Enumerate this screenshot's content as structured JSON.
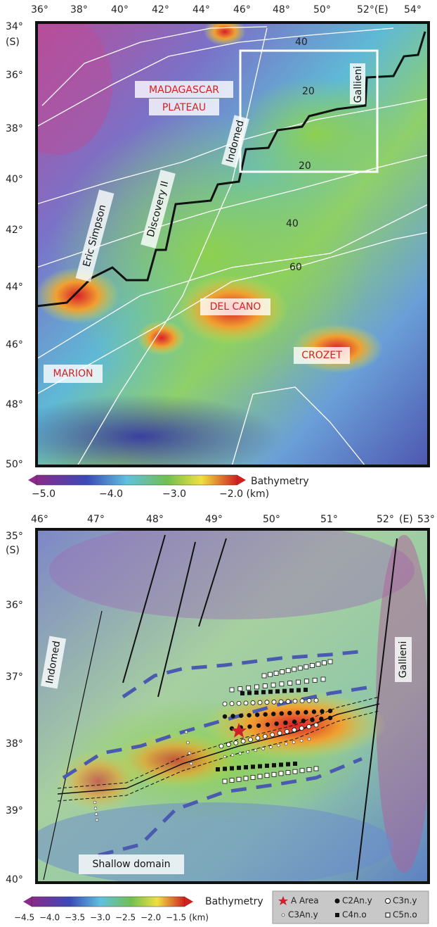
{
  "top_map": {
    "lon_ticks": [
      "36°",
      "38°",
      "40°",
      "42°",
      "44°",
      "46°",
      "48°",
      "50°",
      "52°(E)",
      "54°"
    ],
    "lat_ticks": [
      "34°",
      "36°",
      "38°",
      "40°",
      "42°",
      "44°",
      "46°",
      "48°",
      "50°"
    ],
    "lat_unit": "(S)",
    "contour_labels": [
      "40",
      "20",
      "20",
      "40",
      "60"
    ],
    "features": [
      "Gallieni",
      "MADAGASCAR",
      "PLATEAU",
      "Indomed",
      "Discovery II",
      "Eric Simpson",
      "DEL CANO",
      "CROZET",
      "MARION"
    ],
    "colorbar": {
      "label": "Bathymetry",
      "ticks": [
        "−5.0",
        "−4.0",
        "−3.0",
        "−2.0 (km)"
      ]
    }
  },
  "bottom_map": {
    "lon_ticks": [
      "46°",
      "47°",
      "48°",
      "49°",
      "50°",
      "51°",
      "52°",
      "53°"
    ],
    "lon_unit": "(E)",
    "lat_ticks": [
      "35°",
      "36°",
      "37°",
      "38°",
      "39°",
      "40°"
    ],
    "lat_unit": "(S)",
    "features": [
      "Indomed",
      "Gallieni",
      "Shallow domain"
    ],
    "colorbar": {
      "label": "Bathymetry",
      "ticks": [
        "−4.5",
        "−4.0",
        "−3.5",
        "−3.0",
        "−2.5",
        "−2.0",
        "−1.5 (km)"
      ]
    },
    "legend": [
      "A Area",
      "C2An.y",
      "C3n.y",
      "C3An.y",
      "C4n.o",
      "C5n.o"
    ]
  }
}
